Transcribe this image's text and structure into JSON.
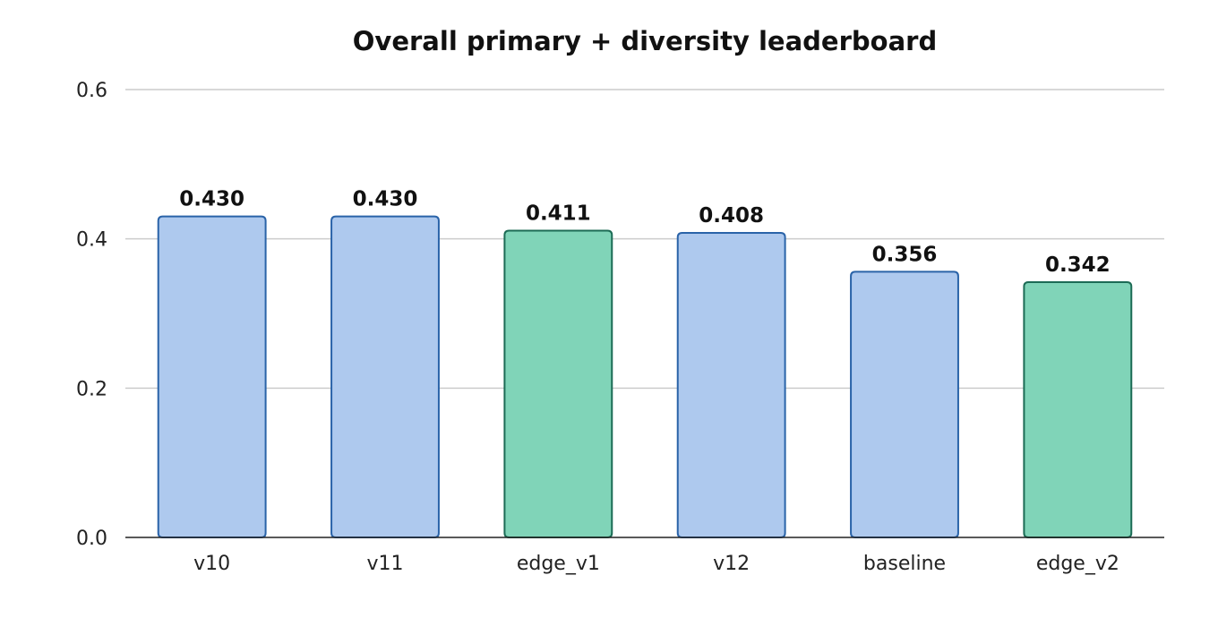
{
  "chart_data": {
    "type": "bar",
    "title": "Overall primary + diversity leaderboard",
    "xlabel": "",
    "ylabel": "",
    "ylim": [
      0,
      0.6
    ],
    "yticks": [
      "0.0",
      "0.2",
      "0.4",
      "0.6"
    ],
    "ytick_values": [
      0,
      0.2,
      0.4,
      0.6
    ],
    "grid": true,
    "categories": [
      "v10",
      "v11",
      "edge_v1",
      "v12",
      "baseline",
      "edge_v2"
    ],
    "values": [
      0.43,
      0.43,
      0.411,
      0.408,
      0.356,
      0.342
    ],
    "value_labels": [
      "0.430",
      "0.430",
      "0.411",
      "0.408",
      "0.356",
      "0.342"
    ],
    "bar_fill_colors": [
      "#aec9ee",
      "#aec9ee",
      "#80d4b8",
      "#aec9ee",
      "#aec9ee",
      "#80d4b8"
    ],
    "bar_edge_colors": [
      "#2a63a8",
      "#2a63a8",
      "#1c6b55",
      "#2a63a8",
      "#2a63a8",
      "#1c6b55"
    ]
  }
}
